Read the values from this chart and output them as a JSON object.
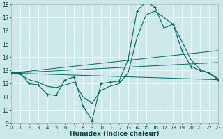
{
  "xlabel": "Humidex (Indice chaleur)",
  "background_color": "#cce8e8",
  "grid_color": "#ffffff",
  "line_color": "#006666",
  "xmin": 0,
  "xmax": 23,
  "ymin": 9,
  "ymax": 18,
  "series_main": {
    "x": [
      0,
      1,
      2,
      3,
      4,
      5,
      6,
      7,
      8,
      9,
      10,
      11,
      12,
      13,
      14,
      15,
      16,
      17,
      18,
      19,
      20,
      21,
      22,
      23
    ],
    "y": [
      12.8,
      12.8,
      12.0,
      11.9,
      11.2,
      11.1,
      12.3,
      12.5,
      10.3,
      9.2,
      12.0,
      12.1,
      12.2,
      13.8,
      17.5,
      18.2,
      17.8,
      16.2,
      16.5,
      14.5,
      13.3,
      13.0,
      12.8,
      12.3
    ]
  },
  "series_smooth": {
    "x": [
      0,
      1,
      2,
      3,
      4,
      5,
      6,
      7,
      8,
      9,
      10,
      11,
      12,
      13,
      14,
      15,
      16,
      17,
      18,
      19,
      20,
      21,
      22,
      23
    ],
    "y": [
      12.8,
      12.7,
      12.3,
      12.1,
      11.8,
      11.7,
      11.9,
      12.1,
      11.0,
      10.5,
      11.5,
      11.8,
      12.0,
      12.8,
      15.5,
      17.2,
      17.5,
      17.0,
      16.5,
      15.2,
      13.8,
      13.1,
      12.8,
      12.4
    ]
  },
  "trend1": {
    "x": [
      0,
      23
    ],
    "y": [
      12.8,
      12.3
    ]
  },
  "trend2": {
    "x": [
      0,
      23
    ],
    "y": [
      12.8,
      13.6
    ]
  },
  "trend3": {
    "x": [
      0,
      23
    ],
    "y": [
      12.8,
      14.5
    ]
  }
}
